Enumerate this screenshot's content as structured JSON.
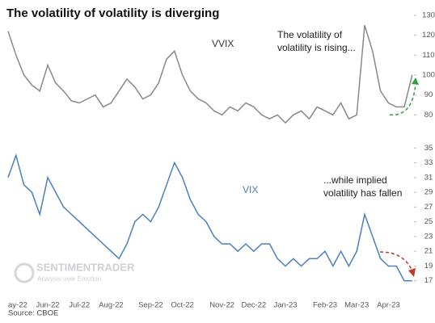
{
  "title": "The volatility of volatility is diverging",
  "source": "Source: CBOE",
  "watermark": [
    "SENTIMENTRADER",
    "Analysis over Emotion"
  ],
  "chart_data": [
    {
      "type": "line",
      "name": "VVIX",
      "annotation": [
        "The volatility of",
        "volatility is rising..."
      ],
      "color": "#888888",
      "ylim": [
        72,
        132
      ],
      "yticks": [
        80,
        90,
        100,
        110,
        120,
        130
      ],
      "values": [
        122,
        110,
        100,
        95,
        92,
        105,
        96,
        92,
        87,
        86,
        88,
        90,
        84,
        86,
        92,
        98,
        94,
        88,
        90,
        96,
        108,
        112,
        100,
        92,
        88,
        86,
        82,
        80,
        84,
        82,
        86,
        84,
        80,
        78,
        80,
        76,
        80,
        82,
        78,
        84,
        82,
        80,
        86,
        78,
        80,
        125,
        112,
        92,
        86,
        84,
        84,
        100
      ]
    },
    {
      "type": "line",
      "name": "VIX",
      "annotation": [
        "...while implied",
        "volatility has fallen"
      ],
      "color": "#4a7fc1",
      "ylim": [
        15,
        37
      ],
      "yticks": [
        17,
        19,
        21,
        23,
        25,
        27,
        29,
        31,
        33,
        35
      ],
      "categories": [
        "ay-22",
        null,
        null,
        null,
        null,
        "Jun-22",
        null,
        null,
        null,
        "Jul-22",
        null,
        null,
        null,
        "Aug-22",
        null,
        null,
        null,
        null,
        "Sep-22",
        null,
        null,
        null,
        "Oct-22",
        null,
        null,
        null,
        null,
        "Nov-22",
        null,
        null,
        null,
        "Dec-22",
        null,
        null,
        null,
        "Jan-23",
        null,
        null,
        null,
        null,
        "Feb-23",
        null,
        null,
        null,
        "Mar-23",
        null,
        null,
        null,
        "Apr-23",
        null,
        null,
        null
      ],
      "values": [
        31,
        34,
        30,
        29,
        26,
        31,
        29,
        27,
        26,
        25,
        24,
        23,
        22,
        21,
        20,
        22,
        25,
        26,
        25,
        27,
        30,
        33,
        31,
        28,
        26,
        25,
        23,
        22,
        22,
        21,
        22,
        21,
        22,
        22,
        20,
        19,
        20,
        19,
        20,
        20,
        21,
        19,
        21,
        19,
        21,
        26,
        23,
        20,
        19,
        19,
        17,
        17
      ]
    }
  ]
}
